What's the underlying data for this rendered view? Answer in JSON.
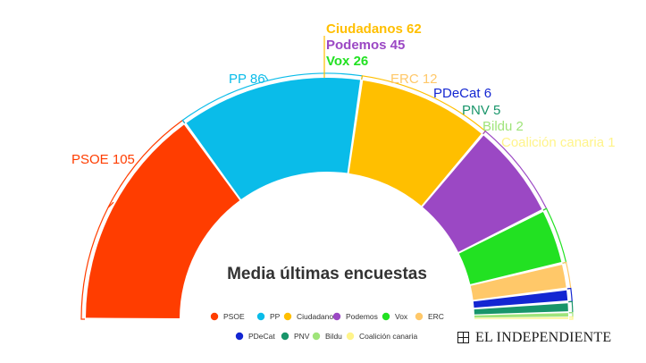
{
  "chart_data": {
    "type": "parliament-semicircle",
    "title": "Media últimas encuestas",
    "total_seats": 350,
    "parties": [
      {
        "name": "PSOE",
        "label": "PSOE 105",
        "seats": 105,
        "color": "#ff3d00"
      },
      {
        "name": "PP",
        "label": "PP 86",
        "seats": 86,
        "color": "#0abce9"
      },
      {
        "name": "Ciudadanos",
        "label": "Ciudadanos 62",
        "seats": 62,
        "color": "#ffbf00"
      },
      {
        "name": "Podemos",
        "label": "Podemos 45",
        "seats": 45,
        "color": "#9b48c4"
      },
      {
        "name": "Vox",
        "label": "Vox 26",
        "seats": 26,
        "color": "#22e122"
      },
      {
        "name": "ERC",
        "label": "ERC 12",
        "seats": 12,
        "color": "#ffc869"
      },
      {
        "name": "PDeCat",
        "label": "PDeCat 6",
        "seats": 6,
        "color": "#1326d2"
      },
      {
        "name": "PNV",
        "label": "PNV 5",
        "seats": 5,
        "color": "#18956a"
      },
      {
        "name": "Bildu",
        "label": "Bildu 2",
        "seats": 2,
        "color": "#9fe47a"
      },
      {
        "name": "Coalición canaria",
        "label": "Coalición canaria 1",
        "seats": 1,
        "color": "#fff48a"
      }
    ],
    "legend_position": "bottom-center"
  },
  "branding": {
    "logo_text": "EL INDEPENDIENTE"
  }
}
